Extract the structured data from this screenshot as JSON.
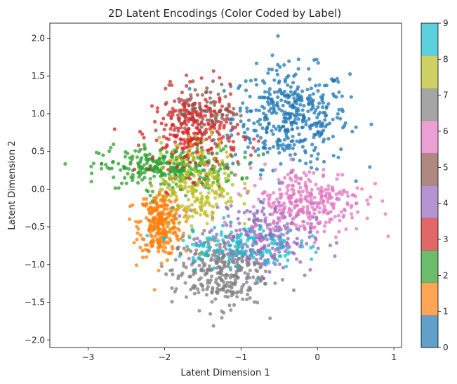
{
  "chart_data": {
    "type": "scatter",
    "title": "2D Latent Encodings (Color Coded by Label)",
    "xlabel": "Latent Dimension 1",
    "ylabel": "Latent Dimension 2",
    "xlim": [
      -3.5,
      1.1
    ],
    "ylim": [
      -2.1,
      2.2
    ],
    "xticks": [
      -3,
      -2,
      -1,
      0,
      1
    ],
    "yticks": [
      -2.0,
      -1.5,
      -1.0,
      -0.5,
      0.0,
      0.5,
      1.0,
      1.5,
      2.0
    ],
    "ytick_labels": [
      "−2.0",
      "−1.5",
      "−1.0",
      "−0.5",
      "0.0",
      "0.5",
      "1.0",
      "1.5",
      "2.0"
    ],
    "xtick_labels": [
      "−3",
      "−2",
      "−1",
      "0",
      "1"
    ],
    "grid": false,
    "colorbar": {
      "ticks": [
        0,
        1,
        2,
        3,
        4,
        5,
        6,
        7,
        8,
        9
      ],
      "colors": [
        "#1f77b4",
        "#ff7f0e",
        "#2ca02c",
        "#d62728",
        "#9467bd",
        "#8c564b",
        "#e377c2",
        "#7f7f7f",
        "#bcbd22",
        "#17becf"
      ]
    },
    "series": [
      {
        "label_value": 0,
        "center": [
          -0.35,
          0.95
        ],
        "spread": [
          0.38,
          0.33
        ],
        "count": 420
      },
      {
        "label_value": 1,
        "center": [
          -2.05,
          -0.45
        ],
        "spread": [
          0.14,
          0.22
        ],
        "count": 300
      },
      {
        "label_value": 2,
        "center": [
          -1.95,
          0.28
        ],
        "spread": [
          0.45,
          0.14
        ],
        "count": 330
      },
      {
        "label_value": 3,
        "center": [
          -1.6,
          0.75
        ],
        "spread": [
          0.28,
          0.28
        ],
        "count": 300
      },
      {
        "label_value": 4,
        "center": [
          -0.75,
          -0.65
        ],
        "spread": [
          0.35,
          0.23
        ],
        "count": 260
      },
      {
        "label_value": 5,
        "center": [
          -1.45,
          1.05
        ],
        "spread": [
          0.2,
          0.18
        ],
        "count": 90
      },
      {
        "label_value": 6,
        "center": [
          -0.15,
          -0.15
        ],
        "spread": [
          0.38,
          0.22
        ],
        "count": 300
      },
      {
        "label_value": 7,
        "center": [
          -1.3,
          -1.1
        ],
        "spread": [
          0.3,
          0.24
        ],
        "count": 300
      },
      {
        "label_value": 8,
        "center": [
          -1.55,
          0.05
        ],
        "spread": [
          0.25,
          0.3
        ],
        "count": 220
      },
      {
        "label_value": 9,
        "center": [
          -1.05,
          -0.75
        ],
        "spread": [
          0.4,
          0.15
        ],
        "count": 140
      }
    ]
  }
}
